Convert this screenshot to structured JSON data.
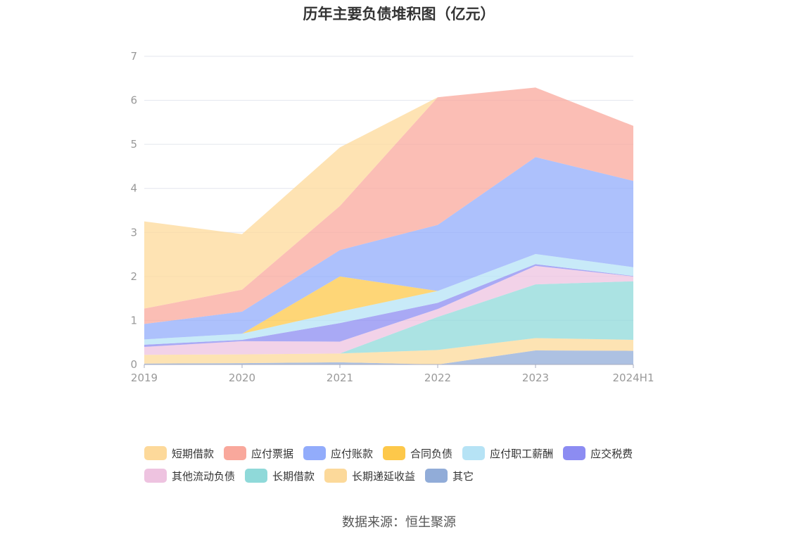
{
  "chart_data": {
    "type": "area",
    "stacked": true,
    "title": "历年主要负债堆积图（亿元）",
    "categories": [
      "2019",
      "2020",
      "2021",
      "2022",
      "2023",
      "2024H1"
    ],
    "y_ticks": [
      "0",
      "1",
      "2",
      "3",
      "4",
      "5",
      "6",
      "7"
    ],
    "ylim": [
      0,
      7
    ],
    "grid": true,
    "legend_position": "bottom",
    "series": [
      {
        "name": "其它",
        "color": "#91acd8",
        "values": [
          0.02,
          0.03,
          0.05,
          0.0,
          0.32,
          0.31
        ]
      },
      {
        "name": "长期递延收益",
        "color": "#fcd99a",
        "values": [
          0.2,
          0.2,
          0.2,
          0.33,
          0.28,
          0.25
        ]
      },
      {
        "name": "长期借款",
        "color": "#8fd9d9",
        "values": [
          0.0,
          0.0,
          0.0,
          0.75,
          1.22,
          1.33
        ]
      },
      {
        "name": "其他流动负债",
        "color": "#eec3e0",
        "values": [
          0.18,
          0.3,
          0.27,
          0.18,
          0.42,
          0.11
        ]
      },
      {
        "name": "应交税费",
        "color": "#8c8cf2",
        "values": [
          0.05,
          0.03,
          0.42,
          0.14,
          0.04,
          0.01
        ]
      },
      {
        "name": "应付职工薪酬",
        "color": "#b6e3f5",
        "values": [
          0.12,
          0.14,
          0.26,
          0.27,
          0.23,
          0.2
        ]
      },
      {
        "name": "合同负债",
        "color": "#fdc84a",
        "values": [
          0.0,
          0.0,
          0.8,
          0.0,
          0.0,
          0.0
        ]
      },
      {
        "name": "应付账款",
        "color": "#92acfb",
        "values": [
          0.35,
          0.5,
          0.6,
          1.5,
          2.2,
          1.96
        ]
      },
      {
        "name": "应付票据",
        "color": "#f9a89c",
        "values": [
          0.35,
          0.5,
          1.0,
          2.9,
          1.58,
          1.25
        ]
      },
      {
        "name": "短期借款",
        "color": "#fdd99a",
        "values": [
          1.98,
          1.26,
          1.33,
          0.0,
          0.0,
          0.0
        ]
      }
    ]
  },
  "legend": {
    "row1": [
      {
        "label": "短期借款",
        "color": "#fdd99a"
      },
      {
        "label": "应付票据",
        "color": "#f9a89c"
      },
      {
        "label": "应付账款",
        "color": "#92acfb"
      },
      {
        "label": "合同负债",
        "color": "#fdc84a"
      },
      {
        "label": "应付职工薪酬",
        "color": "#b6e3f5"
      },
      {
        "label": "应交税费",
        "color": "#8c8cf2"
      }
    ],
    "row2": [
      {
        "label": "其他流动负债",
        "color": "#eec3e0"
      },
      {
        "label": "长期借款",
        "color": "#8fd9d9"
      },
      {
        "label": "长期递延收益",
        "color": "#fcd99a"
      },
      {
        "label": "其它",
        "color": "#91acd8"
      }
    ]
  },
  "source": "数据来源：恒生聚源"
}
